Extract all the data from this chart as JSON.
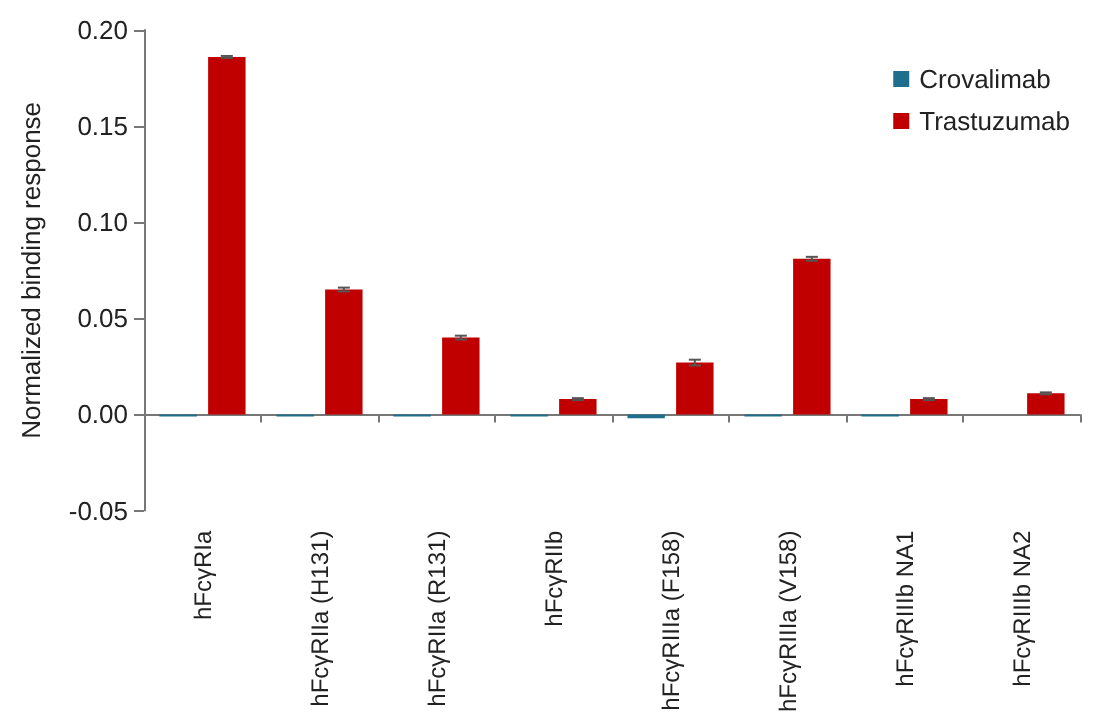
{
  "chart_data": {
    "type": "bar",
    "ylabel": "Normalized binding response",
    "categories": [
      "hFcγRIa",
      "hFcγRIIa (H131)",
      "hFcγRIIa (R131)",
      "hFcγRIIb",
      "hFcγRIIIa (F158)",
      "hFcγRIIIa (V158)",
      "hFcγRIIIb NA1",
      "hFcγRIIIb NA2"
    ],
    "series": [
      {
        "name": "Crovalimab",
        "color": "#1f6e8c",
        "values": [
          -0.001,
          -0.001,
          -0.001,
          -0.001,
          -0.002,
          -0.001,
          -0.001,
          0
        ]
      },
      {
        "name": "Trastuzumab",
        "color": "#c00000",
        "values": [
          0.186,
          0.065,
          0.04,
          0.008,
          0.027,
          0.081,
          0.008,
          0.011
        ],
        "errors": [
          0.0005,
          0.001,
          0.001,
          0.0005,
          0.0015,
          0.001,
          0.0005,
          0.0005
        ]
      }
    ],
    "ylim": [
      -0.05,
      0.2
    ],
    "yticks": [
      -0.05,
      {
        "value": 0,
        "label": "0.00"
      },
      0.05,
      {
        "value": 0.1,
        "label": "0.10"
      },
      0.15,
      {
        "value": 0.2,
        "label": "0.20"
      }
    ],
    "legend": "top right"
  }
}
